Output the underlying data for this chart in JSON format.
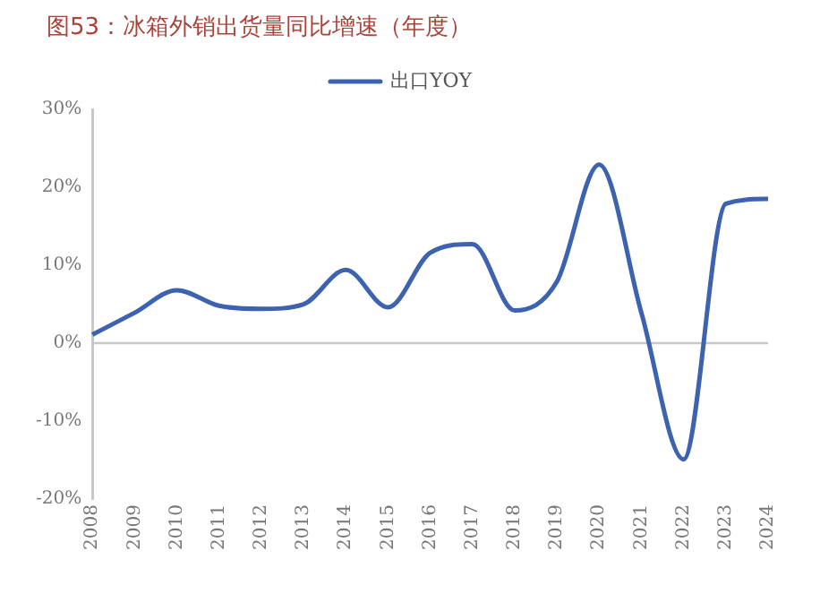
{
  "chart_data": {
    "type": "line",
    "title": "图53：冰箱外销出货量同比增速（年度）",
    "categories": [
      "2008",
      "2009",
      "2010",
      "2011",
      "2012",
      "2013",
      "2014",
      "2015",
      "2016",
      "2017",
      "2018",
      "2019",
      "2020",
      "2021",
      "2022",
      "2023",
      "2024"
    ],
    "series": [
      {
        "name": "出口YOY",
        "color": "#3c62b0",
        "values": [
          1.1,
          3.9,
          6.8,
          4.8,
          4.4,
          5.0,
          9.4,
          4.6,
          11.6,
          12.7,
          4.2,
          7.9,
          22.9,
          3.9,
          -14.9,
          17.9,
          18.5
        ]
      }
    ],
    "ylim": [
      -20,
      30
    ],
    "yticks": [
      {
        "value": -20,
        "label": "-20%"
      },
      {
        "value": -10,
        "label": "-10%"
      },
      {
        "value": 0,
        "label": "0%"
      },
      {
        "value": 10,
        "label": "10%"
      },
      {
        "value": 20,
        "label": "20%"
      },
      {
        "value": 30,
        "label": "30%"
      }
    ],
    "ref_lines": [
      {
        "axis": "y",
        "value": 0,
        "color": "#c8c8c8"
      }
    ],
    "grid": false,
    "legend": "top",
    "marker": "none",
    "line_style": "solid"
  }
}
